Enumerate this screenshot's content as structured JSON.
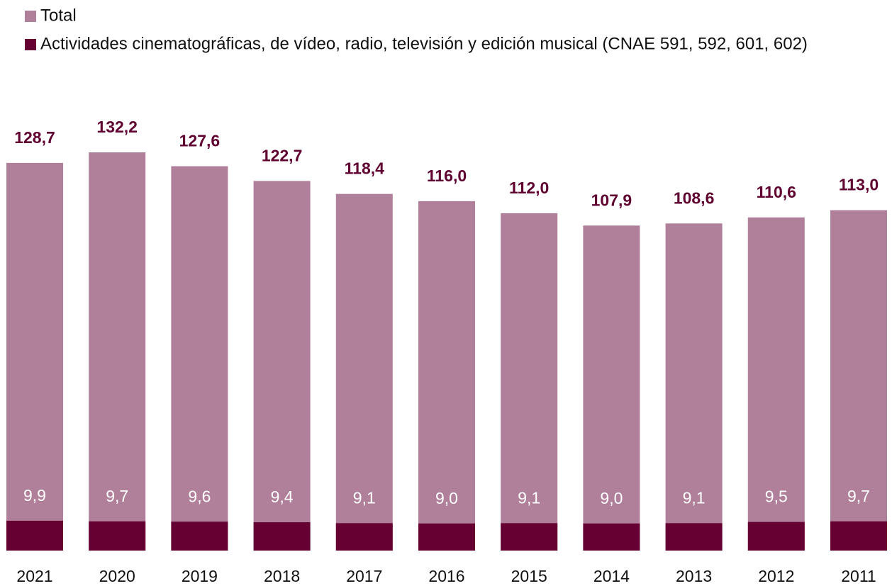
{
  "chart_data": {
    "type": "bar",
    "stacked": false,
    "categories": [
      "2021",
      "2020",
      "2019",
      "2018",
      "2017",
      "2016",
      "2015",
      "2014",
      "2013",
      "2012",
      "2011"
    ],
    "series": [
      {
        "name": "Total",
        "color": "#b07f99",
        "values": [
          128.7,
          132.2,
          127.6,
          122.7,
          118.4,
          116.0,
          112.0,
          107.9,
          108.6,
          110.6,
          113.0
        ],
        "value_labels": [
          "128,7",
          "132,2",
          "127,6",
          "122,7",
          "118,4",
          "116,0",
          "112,0",
          "107,9",
          "108,6",
          "110,6",
          "113,0"
        ]
      },
      {
        "name": "Actividades cinematográficas, de vídeo, radio, televisión y edición musical  (CNAE 591, 592, 601, 602)",
        "color": "#660033",
        "values": [
          9.9,
          9.7,
          9.6,
          9.4,
          9.1,
          9.0,
          9.1,
          9.0,
          9.1,
          9.5,
          9.7
        ],
        "value_labels": [
          "9,9",
          "9,7",
          "9,6",
          "9,4",
          "9,1",
          "9,0",
          "9,1",
          "9,0",
          "9,1",
          "9,5",
          "9,7"
        ]
      }
    ]
  }
}
